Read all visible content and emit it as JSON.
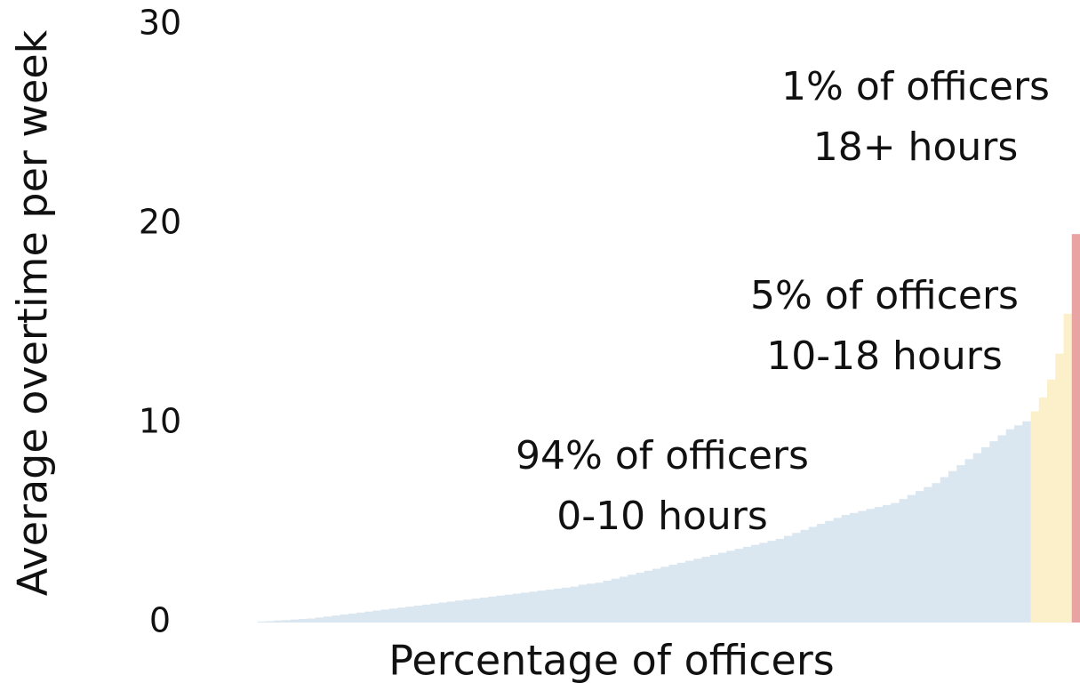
{
  "chart_data": {
    "type": "bar",
    "ylabel": "Average overtime per week",
    "xlabel": "Percentage of officers",
    "ylim": [
      0,
      30
    ],
    "yticks": [
      0,
      10,
      20,
      30
    ],
    "grid": false,
    "series": [
      {
        "color": "#dbe7f0",
        "values": [
          0.05,
          0.07,
          0.1,
          0.12,
          0.15,
          0.18,
          0.2,
          0.25,
          0.3,
          0.35,
          0.4,
          0.45,
          0.5,
          0.55,
          0.6,
          0.65,
          0.7,
          0.75,
          0.8,
          0.85,
          0.9,
          0.95,
          1.0,
          1.05,
          1.1,
          1.15,
          1.2,
          1.25,
          1.3,
          1.35,
          1.4,
          1.45,
          1.5,
          1.55,
          1.6,
          1.65,
          1.7,
          1.75,
          1.8,
          1.9,
          1.95,
          2.0,
          2.1,
          2.2,
          2.3,
          2.4,
          2.5,
          2.6,
          2.7,
          2.8,
          2.9,
          3.0,
          3.1,
          3.2,
          3.3,
          3.4,
          3.5,
          3.6,
          3.7,
          3.8,
          3.9,
          4.0,
          4.1,
          4.2,
          4.35,
          4.5,
          4.65,
          4.8,
          4.95,
          5.1,
          5.25,
          5.4,
          5.5,
          5.6,
          5.7,
          5.8,
          5.9,
          6.0,
          6.2,
          6.4,
          6.6,
          6.8,
          7.0,
          7.3,
          7.6,
          7.9,
          8.2,
          8.5,
          8.8,
          9.1,
          9.4,
          9.7,
          9.9,
          10.1
        ]
      },
      {
        "color": "#fcf0cb",
        "values": [
          10.6,
          11.3,
          12.2,
          13.5,
          15.5
        ]
      },
      {
        "color": "#e9a3a3",
        "values": [
          19.5
        ]
      }
    ],
    "annotations": [
      {
        "lines": [
          "1% of officers",
          "18+ hours"
        ]
      },
      {
        "lines": [
          "5% of officers",
          "10-18 hours"
        ]
      },
      {
        "lines": [
          "94% of officers",
          "0-10 hours"
        ]
      }
    ]
  }
}
